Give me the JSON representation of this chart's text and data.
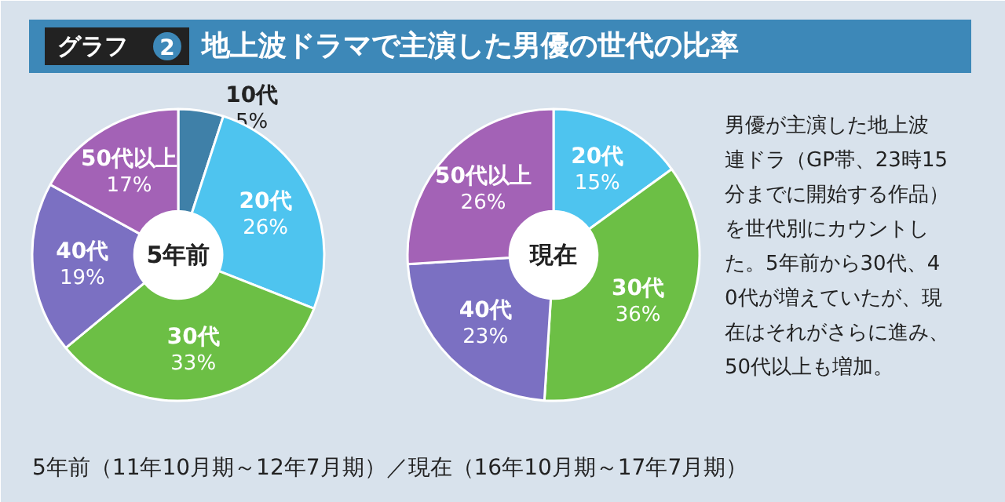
{
  "chart_data": [
    {
      "type": "donut",
      "title": "5年前",
      "categories": [
        "10代",
        "20代",
        "30代",
        "40代",
        "50代以上"
      ],
      "values": [
        5,
        26,
        33,
        19,
        17
      ],
      "value_labels": [
        "5%",
        "26%",
        "33%",
        "19%",
        "17%"
      ],
      "colors": [
        "#3f80a8",
        "#4ec4ef",
        "#6cbf45",
        "#7b70c2",
        "#a362b6"
      ]
    },
    {
      "type": "donut",
      "title": "現在",
      "categories": [
        "20代",
        "30代",
        "40代",
        "50代以上"
      ],
      "values": [
        15,
        36,
        23,
        26
      ],
      "value_labels": [
        "15%",
        "36%",
        "23%",
        "26%"
      ],
      "colors": [
        "#4ec4ef",
        "#6cbf45",
        "#7b70c2",
        "#a362b6"
      ]
    },
    {
      "type": "other",
      "title": "地上波ドラマで主演した男優の世代の比率",
      "annotations": [
        "グラフ",
        "2",
        "男優が主演した地上波連ドラ（GP帯、23時15分までに開始する作品）を世代別にカウントした。5年前から30代、40代が増えていたが、現在はそれがさらに進み、50代以上も増加。",
        "5年前（11年10月期～12年7月期）／現在（16年10月期～17年7月期）"
      ]
    }
  ]
}
